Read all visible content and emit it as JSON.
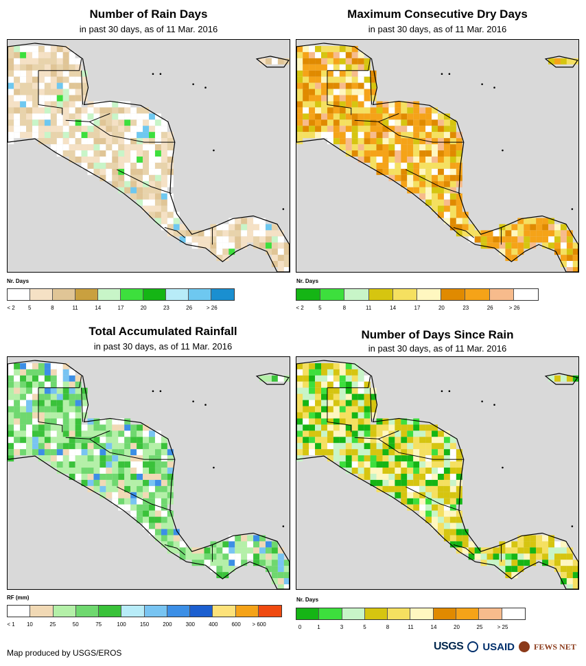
{
  "panels": [
    {
      "title": "Number of Rain Days",
      "subtitle": "in past 30 days, as of 11 Mar. 2016",
      "legend_title": "Nr. Days",
      "legend_colors": [
        "#ffffff",
        "#f5e1c5",
        "#e0c596",
        "#c9a03f",
        "#c8f5c8",
        "#3ddf3d",
        "#15b515",
        "#b8ecf8",
        "#6ec8f0",
        "#1a8fd0"
      ],
      "legend_ticks": [
        "< 2",
        "5",
        "8",
        "11",
        "14",
        "17",
        "20",
        "23",
        "26",
        "> 26"
      ],
      "palette": [
        "#ffffff",
        "#f5e1c5",
        "#e8d3ab",
        "#e0c596",
        "#c8f5c8",
        "#3ddf3d",
        "#6ec8f0"
      ],
      "weights": [
        30,
        25,
        22,
        12,
        5,
        3,
        3
      ],
      "seed": 11
    },
    {
      "title": "Maximum Consecutive Dry Days",
      "subtitle": "in past 30 days, as of 11 Mar. 2016",
      "legend_title": "Nr. Days",
      "legend_colors": [
        "#15b515",
        "#3ddf3d",
        "#c8f5c8",
        "#d6c510",
        "#f5e060",
        "#fff7c0",
        "#e08a00",
        "#f5a318",
        "#f7bb8c",
        "#ffffff"
      ],
      "legend_ticks": [
        "< 2",
        "5",
        "8",
        "11",
        "14",
        "17",
        "20",
        "23",
        "26",
        "> 26"
      ],
      "palette": [
        "#f5a318",
        "#e08a00",
        "#f5e060",
        "#d6c510",
        "#f7bb8c",
        "#ffffff",
        "#fff7c0"
      ],
      "weights": [
        30,
        12,
        22,
        10,
        10,
        8,
        8
      ],
      "seed": 23
    },
    {
      "title": "Total Accumulated Rainfall",
      "subtitle": "in past 30 days, as of 11 Mar. 2016",
      "legend_title": "RF (mm)",
      "legend_colors": [
        "#ffffff",
        "#f1d9b5",
        "#b4f0a8",
        "#6fd86f",
        "#3ac23a",
        "#b8ecf8",
        "#78c4f2",
        "#3c8fe6",
        "#1c5fd0",
        "#fde27a",
        "#f5a318",
        "#f04a10"
      ],
      "legend_ticks": [
        "< 1",
        "10",
        "25",
        "50",
        "75",
        "100",
        "150",
        "200",
        "300",
        "400",
        "600",
        "> 600"
      ],
      "palette": [
        "#b4f0a8",
        "#6fd86f",
        "#3ac23a",
        "#ffffff",
        "#f1d9b5",
        "#78c4f2",
        "#3c8fe6"
      ],
      "weights": [
        28,
        26,
        14,
        12,
        10,
        5,
        5
      ],
      "seed": 37
    },
    {
      "title": "Number of Days Since Rain",
      "subtitle": "in past 30 days, as of 11 Mar. 2016",
      "legend_title": "Nr. Days",
      "legend_colors": [
        "#15b515",
        "#3ddf3d",
        "#c8f5c8",
        "#d6c510",
        "#f5e060",
        "#fff7c0",
        "#e08a00",
        "#f5a318",
        "#f7bb8c",
        "#ffffff"
      ],
      "legend_ticks": [
        "0",
        "1",
        "3",
        "5",
        "8",
        "11",
        "14",
        "20",
        "25",
        "> 25"
      ],
      "palette": [
        "#d6c510",
        "#f5e060",
        "#c8f5c8",
        "#15b515",
        "#fff7c0",
        "#3ddf3d",
        "#ffffff"
      ],
      "weights": [
        30,
        20,
        15,
        14,
        10,
        6,
        5
      ],
      "seed": 51
    }
  ],
  "footer": "Map produced by USGS/EROS",
  "logos": {
    "usgs": "USGS",
    "usaid": "USAID",
    "fews": "FEWS NET"
  }
}
